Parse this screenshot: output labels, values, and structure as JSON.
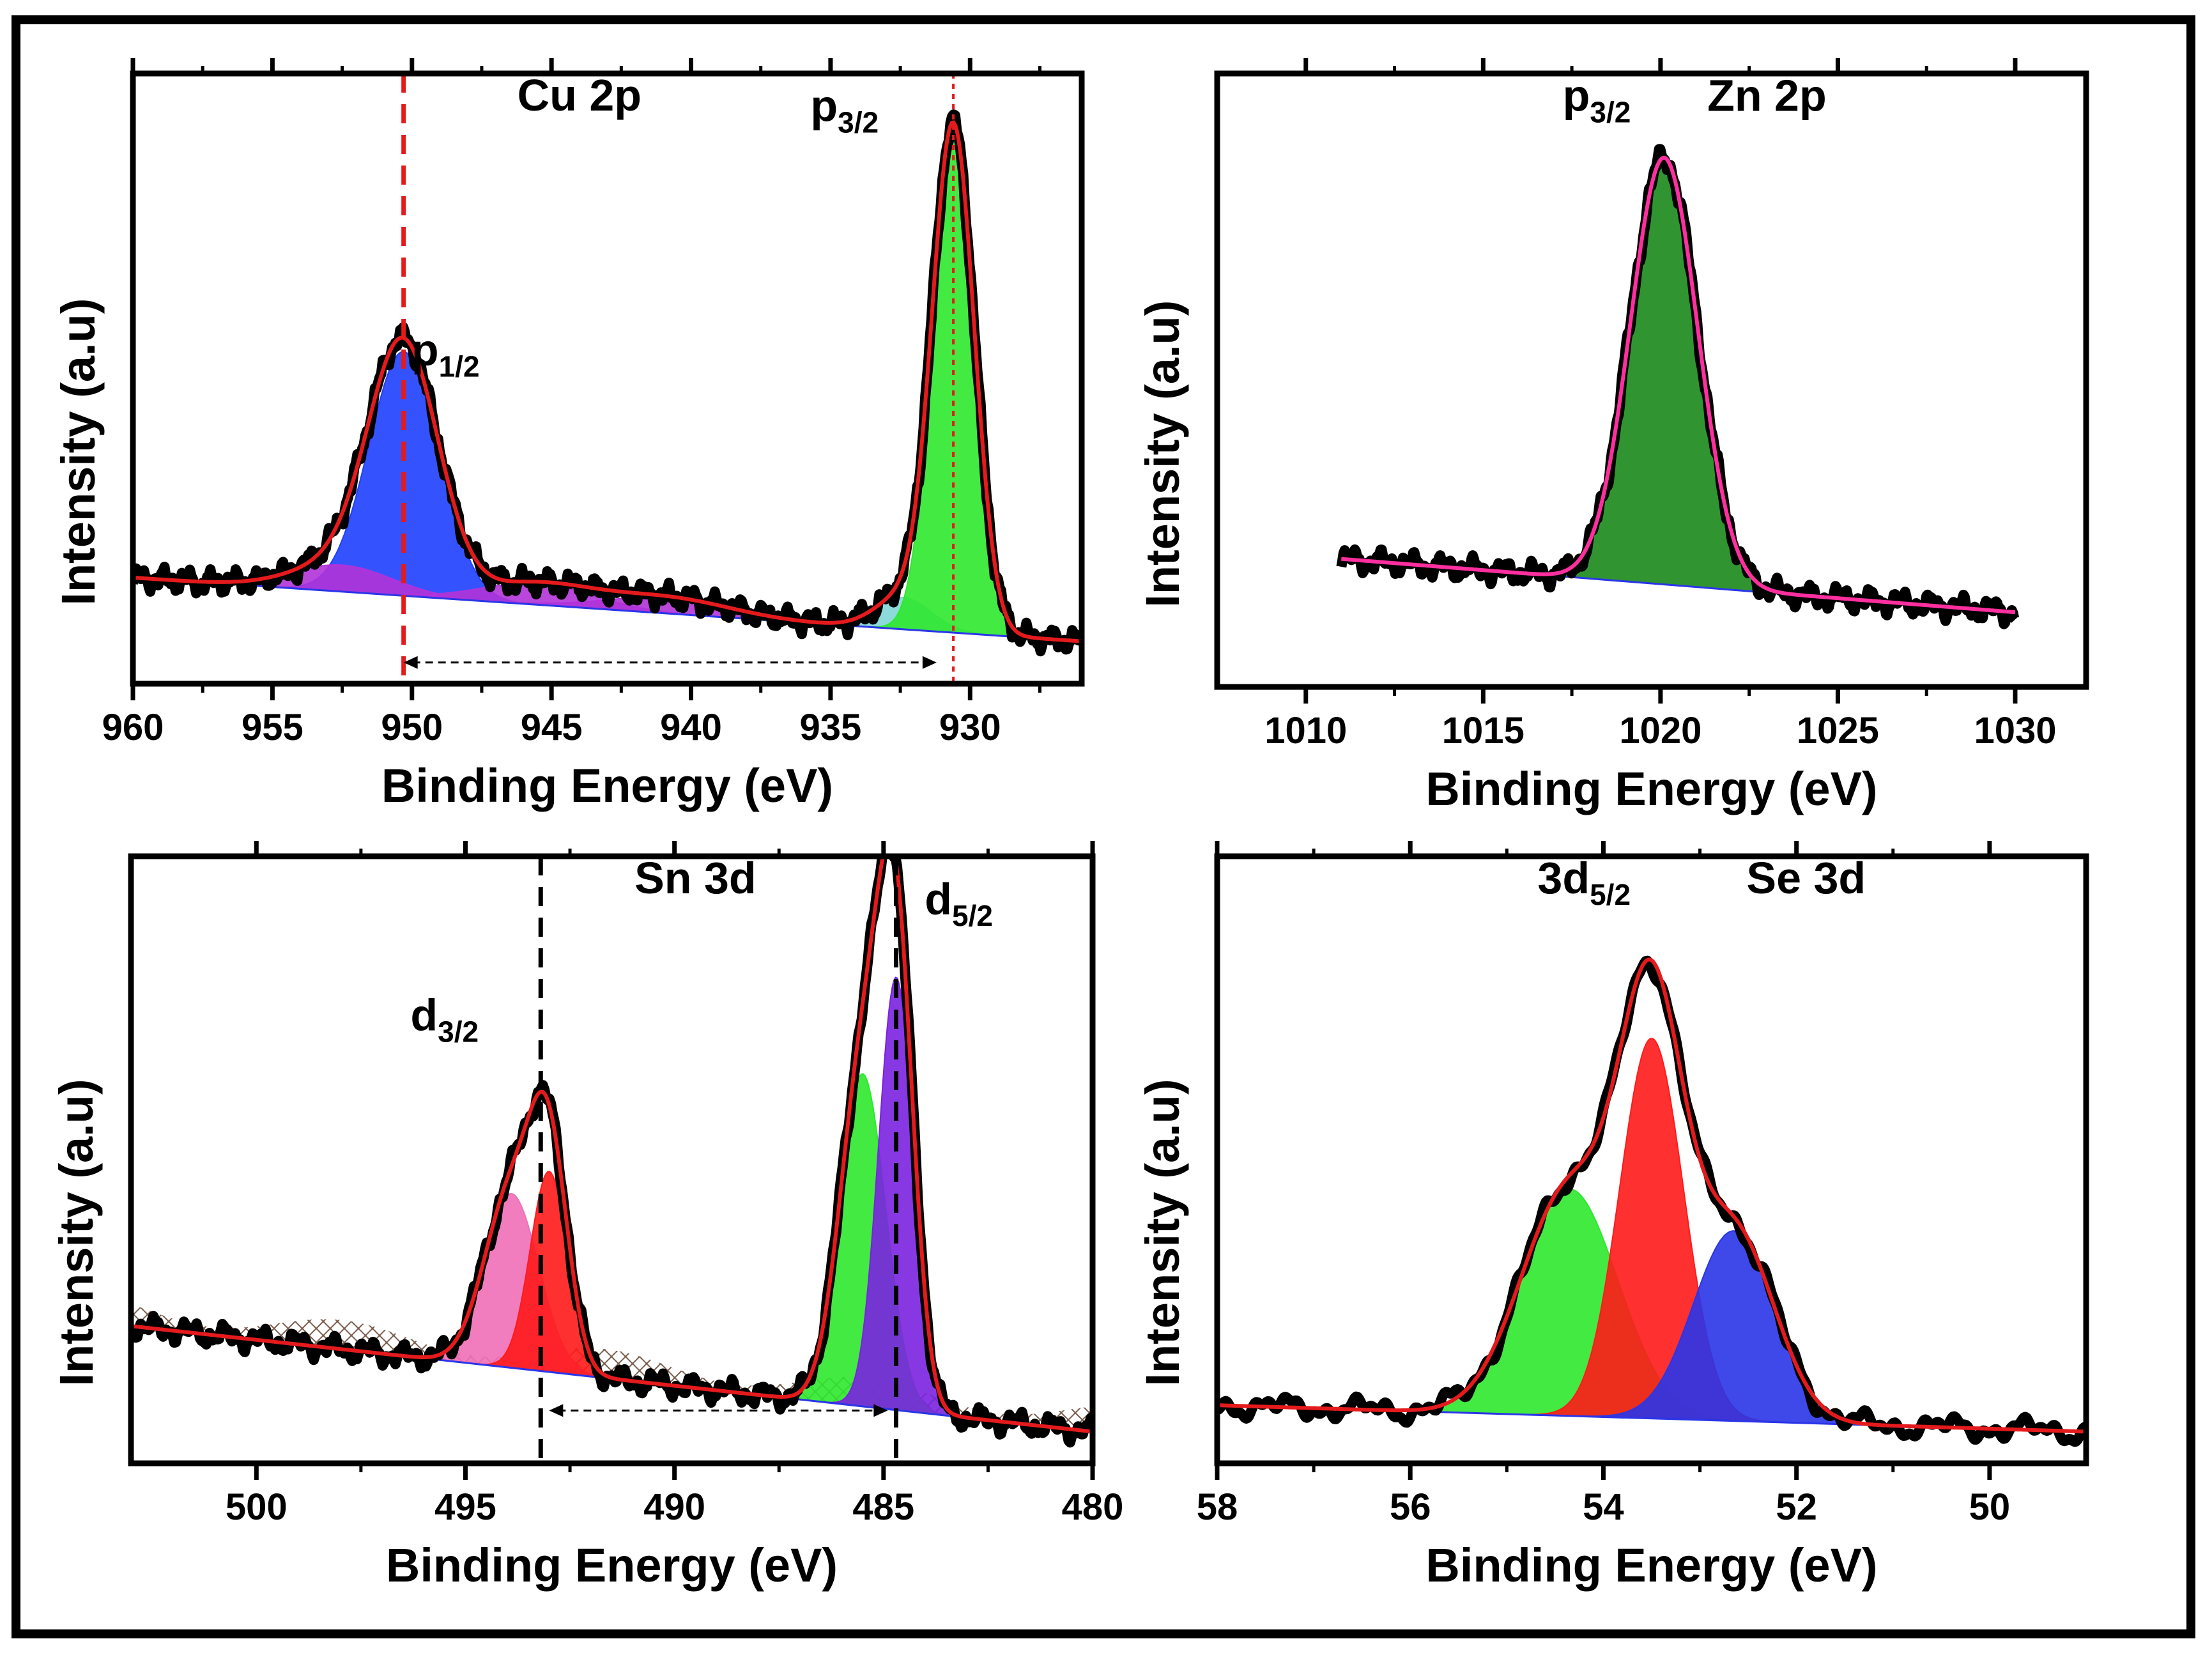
{
  "colors": {
    "frame": "#000000",
    "envelope": "#e41a1c",
    "raw": "#000000",
    "cu_p12": "#1f3fff",
    "cu_p32": "#2ee82e",
    "cu_satellite": "#b133d8",
    "cu_shoulder": "#7fd6d6",
    "zn": "#1a8a1a",
    "zn_fit": "#ff2fa0",
    "sn_pink": "#f06fb8",
    "sn_red": "#ff1a1a",
    "sn_green": "#2ee82e",
    "sn_purple": "#7a22e0",
    "se_green": "#2ee82e",
    "se_red": "#ff1a1a",
    "se_blue": "#2a35e8",
    "baseline": "#2a35e8",
    "refline_red": "#e41a1c",
    "refline_black": "#000000"
  },
  "chart_data": [
    {
      "id": "cu",
      "type": "line",
      "title": "Cu 2p",
      "xlabel": "Binding Energy (eV)",
      "ylabel": "Intensity (a.u)",
      "xlim": [
        960,
        926
      ],
      "ylim": [
        0,
        1.15
      ],
      "xticks": [
        960,
        955,
        950,
        945,
        940,
        935,
        930
      ],
      "xtick_labels": [
        "960",
        "955",
        "950",
        "945",
        "940",
        "935",
        "930"
      ],
      "baseline": {
        "x": [
          960,
          926
        ],
        "y": [
          0.2,
          0.08
        ]
      },
      "peaks": [
        {
          "name": "p1/2",
          "center": 950.3,
          "height": 0.46,
          "width": 1.25,
          "color_key": "cu_p12"
        },
        {
          "name": "satellite-1",
          "center": 952.5,
          "height": 0.05,
          "width": 1.8,
          "color_key": "cu_satellite"
        },
        {
          "name": "satellite-2",
          "center": 945.5,
          "height": 0.04,
          "width": 2.0,
          "color_key": "cu_satellite"
        },
        {
          "name": "satellite-3",
          "center": 940.8,
          "height": 0.03,
          "width": 2.2,
          "color_key": "cu_satellite"
        },
        {
          "name": "shoulder",
          "center": 932.4,
          "height": 0.06,
          "width": 1.0,
          "color_key": "cu_shoulder"
        },
        {
          "name": "p3/2",
          "center": 930.6,
          "height": 0.95,
          "width": 0.75,
          "color_key": "cu_p32"
        }
      ],
      "reference_lines": [
        {
          "x": 950.3,
          "style": "dashed",
          "color_key": "refline_red"
        },
        {
          "x": 930.6,
          "style": "dotted",
          "color_key": "refline_red"
        }
      ],
      "spacing_arrow": {
        "from": 950.3,
        "to": 931.2,
        "y": 0.04
      },
      "annotations": [
        {
          "text": "Cu 2p",
          "x": 944.0,
          "y": 1.08
        },
        {
          "main": "p",
          "sub": "3/2",
          "x": 934.5,
          "y": 1.06
        },
        {
          "main": "p",
          "sub": "1/2",
          "x": 948.8,
          "y": 0.6
        }
      ]
    },
    {
      "id": "zn",
      "type": "line",
      "title": "Zn 2p",
      "xlabel": "Binding Energy (eV)",
      "ylabel": "Intensity (a.u)",
      "xlim": [
        1007.5,
        1032
      ],
      "ylim": [
        0,
        1.15
      ],
      "xticks": [
        1010,
        1015,
        1020,
        1025,
        1030
      ],
      "xtick_labels": [
        "1010",
        "1015",
        "1020",
        "1025",
        "1030"
      ],
      "data_range": [
        1011,
        1030
      ],
      "baseline": {
        "x": [
          1011,
          1030
        ],
        "y": [
          0.24,
          0.14
        ]
      },
      "peaks": [
        {
          "name": "p3/2",
          "center": 1020.1,
          "height": 0.8,
          "width": 0.95,
          "color_key": "zn"
        }
      ],
      "annotations": [
        {
          "main": "p",
          "sub": "3/2",
          "x": 1018.2,
          "y": 1.08
        },
        {
          "text": "Zn 2p",
          "x": 1023.0,
          "y": 1.08
        }
      ]
    },
    {
      "id": "sn",
      "type": "line",
      "title": "Sn 3d",
      "xlabel": "Binding Energy (eV)",
      "ylabel": "Intensity (a.u)",
      "xlim": [
        503,
        480
      ],
      "ylim": [
        0,
        1.15
      ],
      "xticks": [
        500,
        495,
        490,
        485,
        480
      ],
      "xtick_labels": [
        "500",
        "495",
        "490",
        "485",
        "480"
      ],
      "baseline": {
        "x": [
          503,
          480
        ],
        "y": [
          0.26,
          0.06
        ]
      },
      "peaks": [
        {
          "name": "d3/2-a",
          "center": 493.9,
          "height": 0.33,
          "width": 0.65,
          "color_key": "sn_pink"
        },
        {
          "name": "d3/2-b",
          "center": 493.0,
          "height": 0.38,
          "width": 0.45,
          "color_key": "sn_red"
        },
        {
          "name": "d5/2-a",
          "center": 485.5,
          "height": 0.63,
          "width": 0.55,
          "color_key": "sn_green"
        },
        {
          "name": "d5/2-b",
          "center": 484.7,
          "height": 0.82,
          "width": 0.42,
          "color_key": "sn_purple"
        }
      ],
      "reference_lines": [
        {
          "x": 493.2,
          "style": "dashed",
          "color_key": "refline_black"
        },
        {
          "x": 484.7,
          "style": "dashed",
          "color_key": "refline_black"
        }
      ],
      "spacing_arrow": {
        "from": 493.0,
        "to": 484.9,
        "y": 0.1
      },
      "annotations": [
        {
          "text": "Sn 3d",
          "x": 489.5,
          "y": 1.08
        },
        {
          "main": "d",
          "sub": "5/2",
          "x": 483.2,
          "y": 1.04
        },
        {
          "main": "d",
          "sub": "3/2",
          "x": 495.5,
          "y": 0.82
        }
      ]
    },
    {
      "id": "se",
      "type": "line",
      "title": "Se 3d",
      "xlabel": "Binding Energy (eV)",
      "ylabel": "Intensity (a.u)",
      "xlim": [
        58,
        49
      ],
      "ylim": [
        0,
        1.15
      ],
      "xticks": [
        58,
        56,
        54,
        52,
        50
      ],
      "xtick_labels": [
        "58",
        "56",
        "54",
        "52",
        "50"
      ],
      "baseline": {
        "x": [
          58,
          49
        ],
        "y": [
          0.11,
          0.06
        ]
      },
      "peaks": [
        {
          "name": "3d5/2-a",
          "center": 54.35,
          "height": 0.43,
          "width": 0.5,
          "color_key": "se_green"
        },
        {
          "name": "3d5/2-b",
          "center": 53.5,
          "height": 0.72,
          "width": 0.33,
          "color_key": "se_red"
        },
        {
          "name": "3d3/2",
          "center": 52.65,
          "height": 0.36,
          "width": 0.42,
          "color_key": "se_blue"
        }
      ],
      "annotations": [
        {
          "main": "3d",
          "sub": "5/2",
          "x": 54.2,
          "y": 1.08
        },
        {
          "text": "Se 3d",
          "x": 51.9,
          "y": 1.08
        }
      ]
    }
  ]
}
